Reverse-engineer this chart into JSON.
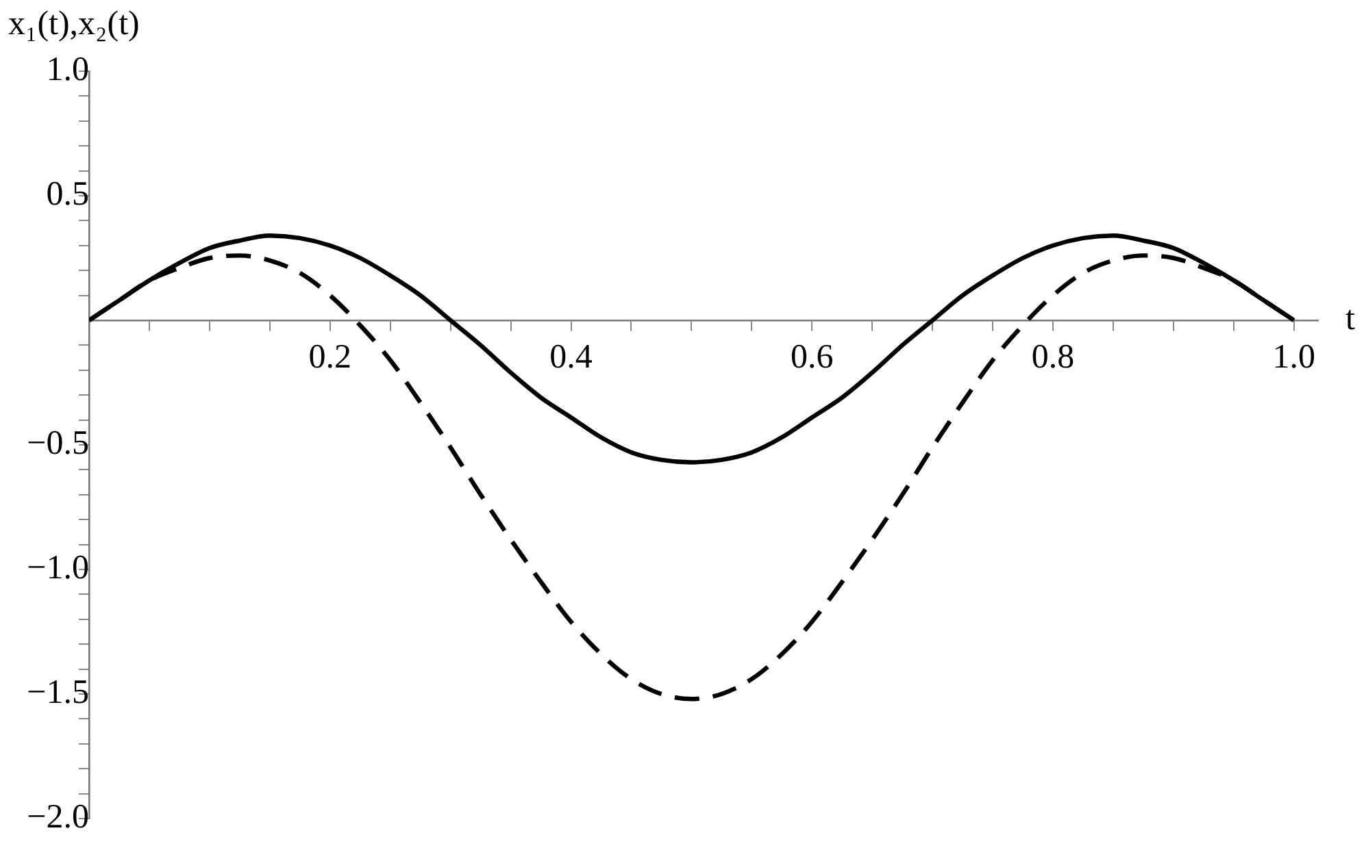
{
  "chart_data": {
    "type": "line",
    "xlabel": "t",
    "ylabel": "x₁(t),x₂(t)",
    "x": [
      0,
      0.025,
      0.05,
      0.075,
      0.1,
      0.125,
      0.15,
      0.175,
      0.2,
      0.225,
      0.25,
      0.275,
      0.3,
      0.325,
      0.35,
      0.375,
      0.4,
      0.425,
      0.45,
      0.475,
      0.5,
      0.525,
      0.55,
      0.575,
      0.6,
      0.625,
      0.65,
      0.675,
      0.7,
      0.725,
      0.75,
      0.775,
      0.8,
      0.825,
      0.85,
      0.875,
      0.9,
      0.925,
      0.95,
      0.975,
      1
    ],
    "series": [
      {
        "color": "#000000",
        "line_style": "solid",
        "values": [
          0,
          0.08,
          0.16,
          0.23,
          0.29,
          0.32,
          0.34,
          0.33,
          0.3,
          0.25,
          0.18,
          0.1,
          0,
          -0.1,
          -0.21,
          -0.31,
          -0.39,
          -0.47,
          -0.53,
          -0.56,
          -0.57,
          -0.56,
          -0.53,
          -0.47,
          -0.39,
          -0.31,
          -0.21,
          -0.1,
          0,
          0.1,
          0.18,
          0.25,
          0.3,
          0.33,
          0.34,
          0.32,
          0.29,
          0.23,
          0.16,
          0.08,
          0
        ]
      },
      {
        "color": "#000000",
        "line_style": "dashed",
        "values": [
          0,
          0.08,
          0.16,
          0.21,
          0.25,
          0.26,
          0.24,
          0.19,
          0.1,
          -0.02,
          -0.16,
          -0.33,
          -0.51,
          -0.7,
          -0.88,
          -1.05,
          -1.21,
          -1.34,
          -1.44,
          -1.5,
          -1.52,
          -1.5,
          -1.44,
          -1.34,
          -1.21,
          -1.05,
          -0.88,
          -0.7,
          -0.51,
          -0.33,
          -0.16,
          -0.02,
          0.1,
          0.19,
          0.24,
          0.26,
          0.25,
          0.21,
          0.16,
          0.08,
          0
        ]
      }
    ],
    "xlim": [
      0,
      1.02
    ],
    "ylim": [
      -2,
      1
    ],
    "xticks": [
      {
        "value": 0.05,
        "label": null
      },
      {
        "value": 0.1,
        "label": null
      },
      {
        "value": 0.15,
        "label": null
      },
      {
        "value": 0.2,
        "label": "0.2"
      },
      {
        "value": 0.25,
        "label": null
      },
      {
        "value": 0.3,
        "label": null
      },
      {
        "value": 0.35,
        "label": null
      },
      {
        "value": 0.4,
        "label": "0.4"
      },
      {
        "value": 0.45,
        "label": null
      },
      {
        "value": 0.5,
        "label": null
      },
      {
        "value": 0.55,
        "label": null
      },
      {
        "value": 0.6,
        "label": "0.6"
      },
      {
        "value": 0.65,
        "label": null
      },
      {
        "value": 0.7,
        "label": null
      },
      {
        "value": 0.75,
        "label": null
      },
      {
        "value": 0.8,
        "label": "0.8"
      },
      {
        "value": 0.85,
        "label": null
      },
      {
        "value": 0.9,
        "label": null
      },
      {
        "value": 0.95,
        "label": null
      },
      {
        "value": 1,
        "label": "1.0"
      }
    ],
    "yticks": [
      {
        "value": -2,
        "label": "−2.0"
      },
      {
        "value": -1.9,
        "label": null
      },
      {
        "value": -1.8,
        "label": null
      },
      {
        "value": -1.7,
        "label": null
      },
      {
        "value": -1.6,
        "label": null
      },
      {
        "value": -1.5,
        "label": "−1.5"
      },
      {
        "value": -1.4,
        "label": null
      },
      {
        "value": -1.3,
        "label": null
      },
      {
        "value": -1.2,
        "label": null
      },
      {
        "value": -1.1,
        "label": null
      },
      {
        "value": -1,
        "label": "−1.0"
      },
      {
        "value": -0.9,
        "label": null
      },
      {
        "value": -0.8,
        "label": null
      },
      {
        "value": -0.7,
        "label": null
      },
      {
        "value": -0.6,
        "label": null
      },
      {
        "value": -0.5,
        "label": "−0.5"
      },
      {
        "value": -0.4,
        "label": null
      },
      {
        "value": -0.3,
        "label": null
      },
      {
        "value": -0.2,
        "label": null
      },
      {
        "value": -0.1,
        "label": null
      },
      {
        "value": 0.1,
        "label": null
      },
      {
        "value": 0.2,
        "label": null
      },
      {
        "value": 0.3,
        "label": null
      },
      {
        "value": 0.4,
        "label": null
      },
      {
        "value": 0.5,
        "label": "0.5"
      },
      {
        "value": 0.6,
        "label": null
      },
      {
        "value": 0.7,
        "label": null
      },
      {
        "value": 0.8,
        "label": null
      },
      {
        "value": 0.9,
        "label": null
      },
      {
        "value": 1,
        "label": "1.0"
      }
    ],
    "grid": false,
    "legend": false,
    "marker": "none"
  }
}
